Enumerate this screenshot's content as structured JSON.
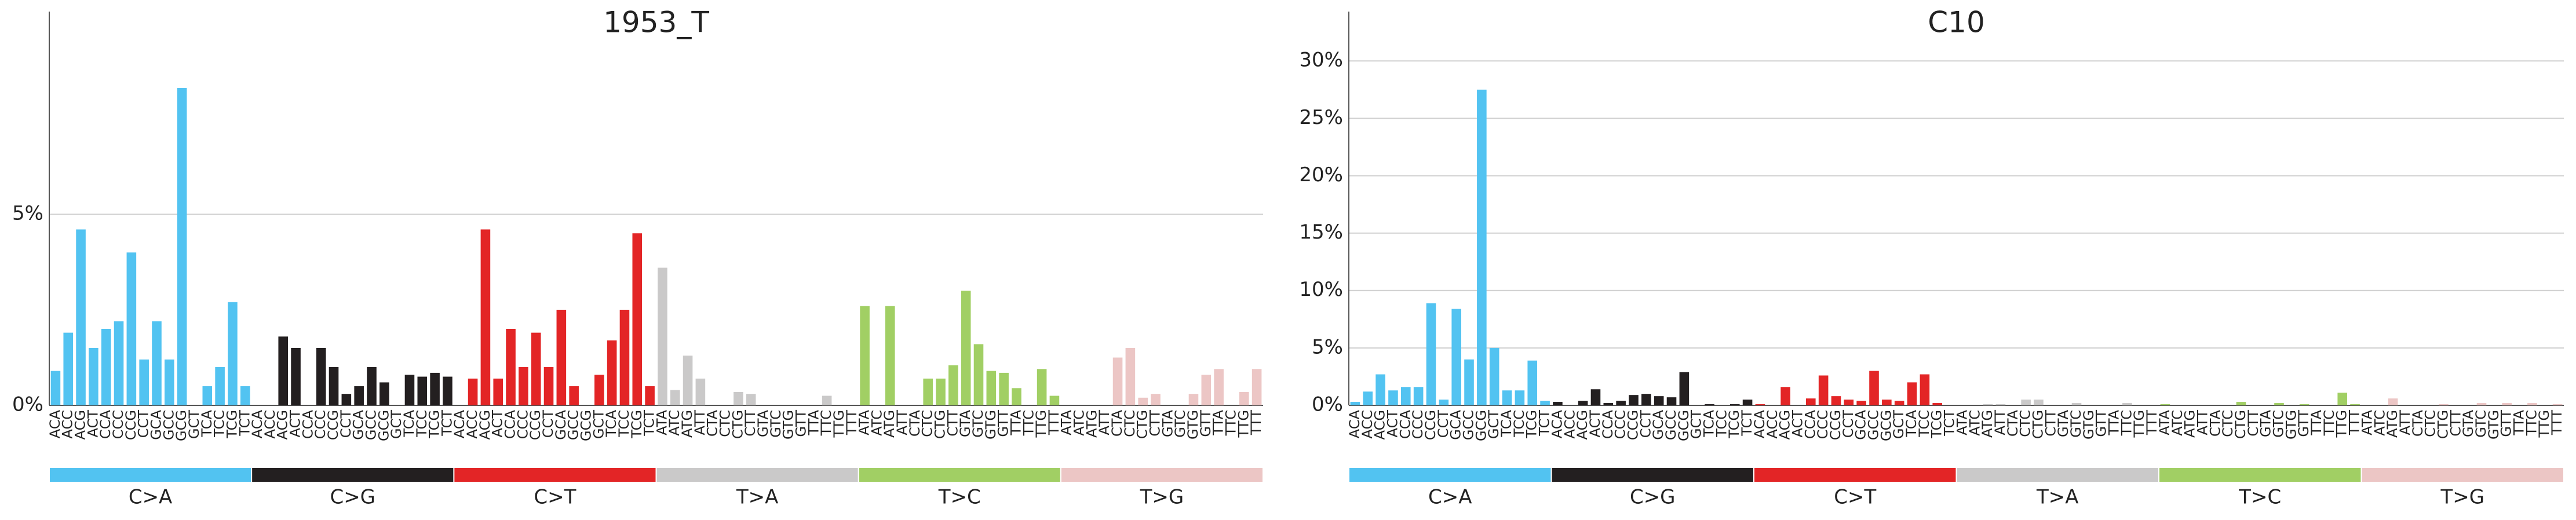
{
  "chart_data": [
    {
      "type": "bar",
      "title": "1953_T",
      "categories": [
        "ACA",
        "ACC",
        "ACG",
        "ACT",
        "CCA",
        "CCC",
        "CCG",
        "CCT",
        "GCA",
        "GCC",
        "GCG",
        "GCT",
        "TCA",
        "TCC",
        "TCG",
        "TCT",
        "ACA",
        "ACC",
        "ACG",
        "ACT",
        "CCA",
        "CCC",
        "CCG",
        "CCT",
        "GCA",
        "GCC",
        "GCG",
        "GCT",
        "TCA",
        "TCC",
        "TCG",
        "TCT",
        "ACA",
        "ACC",
        "ACG",
        "ACT",
        "CCA",
        "CCC",
        "CCG",
        "CCT",
        "GCA",
        "GCC",
        "GCG",
        "GCT",
        "TCA",
        "TCC",
        "TCG",
        "TCT",
        "ATA",
        "ATC",
        "ATG",
        "ATT",
        "CTA",
        "CTC",
        "CTG",
        "CTT",
        "GTA",
        "GTC",
        "GTG",
        "GTT",
        "TTA",
        "TTC",
        "TTG",
        "TTT",
        "ATA",
        "ATC",
        "ATG",
        "ATT",
        "CTA",
        "CTC",
        "CTG",
        "CTT",
        "GTA",
        "GTC",
        "GTG",
        "GTT",
        "TTA",
        "TTC",
        "TTG",
        "TTT",
        "ATA",
        "ATC",
        "ATG",
        "ATT",
        "CTA",
        "CTC",
        "CTG",
        "CTT",
        "GTA",
        "GTC",
        "GTG",
        "GTT",
        "TTA",
        "TTC",
        "TTG",
        "TTT"
      ],
      "values": [
        0.9,
        1.9,
        4.6,
        1.5,
        2.0,
        2.2,
        4.0,
        1.2,
        2.2,
        1.2,
        8.3,
        0,
        0.5,
        1.0,
        2.7,
        0.5,
        0,
        0,
        1.8,
        1.5,
        0,
        1.5,
        1.0,
        0.3,
        0.5,
        1.0,
        0.6,
        0,
        0.8,
        0.75,
        0.85,
        0.75,
        0,
        0.7,
        4.6,
        0.7,
        2.0,
        1.0,
        1.9,
        1.0,
        2.5,
        0.5,
        0,
        0.8,
        1.7,
        2.5,
        4.5,
        0.5,
        3.6,
        0.4,
        1.3,
        0.7,
        0,
        0,
        0.35,
        0.3,
        0,
        0,
        0,
        0,
        0,
        0.25,
        0,
        0,
        2.6,
        0,
        2.6,
        0,
        0,
        0.7,
        0.7,
        1.05,
        3.0,
        1.6,
        0.9,
        0.85,
        0.45,
        0,
        0.95,
        0.25,
        0,
        0,
        0,
        0,
        1.25,
        1.5,
        0.2,
        0.3,
        0,
        0,
        0.3,
        0.8,
        0.95,
        0,
        0.35,
        0.95
      ],
      "groups": [
        {
          "name": "C>A",
          "color": "#52c3f1"
        },
        {
          "name": "C>G",
          "color": "#231f20"
        },
        {
          "name": "C>T",
          "color": "#e32526"
        },
        {
          "name": "T>A",
          "color": "#cac9c9"
        },
        {
          "name": "T>C",
          "color": "#a1cf64"
        },
        {
          "name": "T>G",
          "color": "#ecc6c5"
        }
      ],
      "ylim": [
        0,
        10.3
      ],
      "yticks": [
        {
          "value": 0,
          "label": "0%"
        },
        {
          "value": 5,
          "label": "5%"
        }
      ],
      "grid": true
    },
    {
      "type": "bar",
      "title": "C10",
      "categories": [
        "ACA",
        "ACC",
        "ACG",
        "ACT",
        "CCA",
        "CCC",
        "CCG",
        "CCT",
        "GCA",
        "GCC",
        "GCG",
        "GCT",
        "TCA",
        "TCC",
        "TCG",
        "TCT",
        "ACA",
        "ACC",
        "ACG",
        "ACT",
        "CCA",
        "CCC",
        "CCG",
        "CCT",
        "GCA",
        "GCC",
        "GCG",
        "GCT",
        "TCA",
        "TCC",
        "TCG",
        "TCT",
        "ACA",
        "ACC",
        "ACG",
        "ACT",
        "CCA",
        "CCC",
        "CCG",
        "CCT",
        "GCA",
        "GCC",
        "GCG",
        "GCT",
        "TCA",
        "TCC",
        "TCG",
        "TCT",
        "ATA",
        "ATC",
        "ATG",
        "ATT",
        "CTA",
        "CTC",
        "CTG",
        "CTT",
        "GTA",
        "GTC",
        "GTG",
        "GTT",
        "TTA",
        "TTC",
        "TTG",
        "TTT",
        "ATA",
        "ATC",
        "ATG",
        "ATT",
        "CTA",
        "CTC",
        "CTG",
        "CTT",
        "GTA",
        "GTC",
        "GTG",
        "GTT",
        "TTA",
        "TTC",
        "TTG",
        "TTT",
        "ATA",
        "ATC",
        "ATG",
        "ATT",
        "CTA",
        "CTC",
        "CTG",
        "CTT",
        "GTA",
        "GTC",
        "GTG",
        "GTT",
        "TTA",
        "TTC",
        "TTG",
        "TTT"
      ],
      "values": [
        0.3,
        1.2,
        2.7,
        1.3,
        1.6,
        1.6,
        8.9,
        0.5,
        8.4,
        4.0,
        27.5,
        5.0,
        1.3,
        1.3,
        3.9,
        0.4,
        0.3,
        0,
        0.4,
        1.4,
        0.2,
        0.4,
        0.9,
        1.0,
        0.8,
        0.7,
        2.9,
        0,
        0.1,
        0,
        0.1,
        0.5,
        0.1,
        0,
        1.6,
        0,
        0.6,
        2.6,
        0.8,
        0.5,
        0.4,
        3.0,
        0.5,
        0.4,
        2.0,
        2.7,
        0.2,
        0,
        0,
        0,
        0.1,
        0.1,
        0,
        0.5,
        0.5,
        0,
        0,
        0.2,
        0,
        0,
        0,
        0.2,
        0,
        0,
        0.1,
        0,
        0,
        0,
        0,
        0,
        0.3,
        0,
        0,
        0.2,
        0,
        0.1,
        0,
        0,
        1.1,
        0.1,
        0,
        0,
        0.6,
        0,
        0,
        0,
        0.1,
        0,
        0,
        0.2,
        0,
        0.2,
        0,
        0.2,
        0,
        0.1
      ],
      "groups": [
        {
          "name": "C>A",
          "color": "#52c3f1"
        },
        {
          "name": "C>G",
          "color": "#231f20"
        },
        {
          "name": "C>T",
          "color": "#e32526"
        },
        {
          "name": "T>A",
          "color": "#cac9c9"
        },
        {
          "name": "T>C",
          "color": "#a1cf64"
        },
        {
          "name": "T>G",
          "color": "#ecc6c5"
        }
      ],
      "ylim": [
        0,
        34.3
      ],
      "yticks": [
        {
          "value": 0,
          "label": "0%"
        },
        {
          "value": 5,
          "label": "5%"
        },
        {
          "value": 10,
          "label": "10%"
        },
        {
          "value": 15,
          "label": "15%"
        },
        {
          "value": 20,
          "label": "20%"
        },
        {
          "value": 25,
          "label": "25%"
        },
        {
          "value": 30,
          "label": "30%"
        }
      ],
      "grid": true
    }
  ]
}
